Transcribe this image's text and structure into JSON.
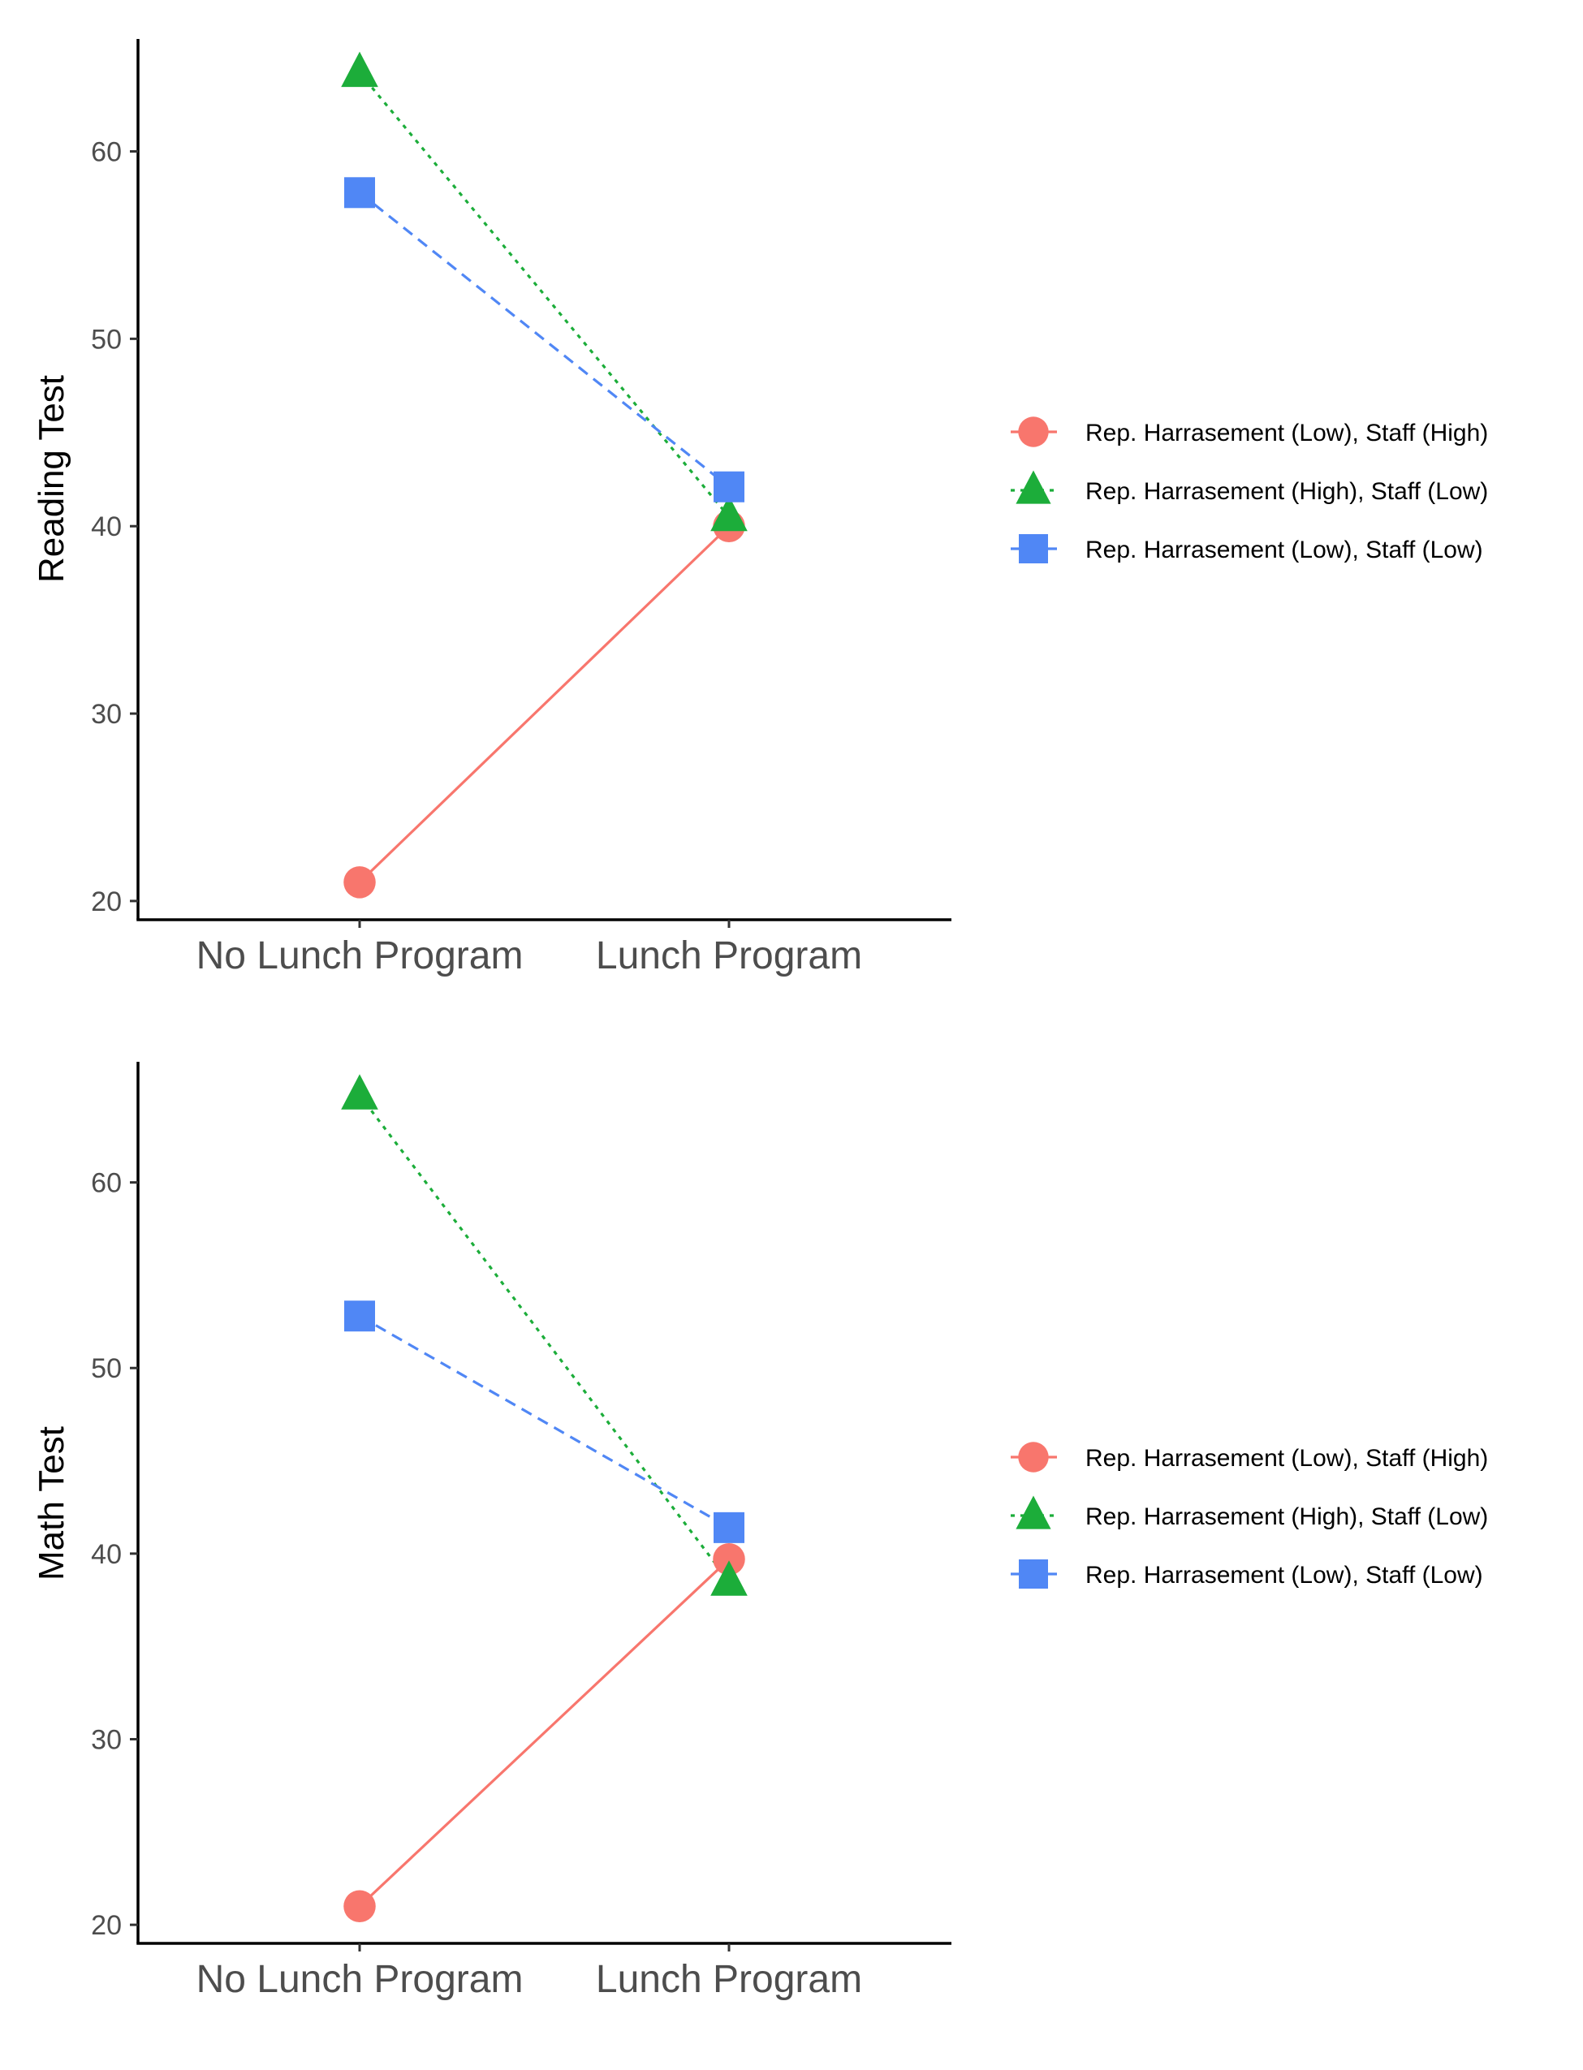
{
  "colors": {
    "red": "#F8766D",
    "green": "#1CAD3A",
    "blue": "#5087F5",
    "axis": "#000000",
    "tick_text": "#4d4d4d"
  },
  "chart_data": [
    {
      "type": "line",
      "title": "",
      "xlabel": "",
      "ylabel": "Reading Test",
      "categories": [
        "No Lunch Program",
        "Lunch Program"
      ],
      "yticks": [
        20,
        30,
        40,
        50,
        60
      ],
      "ylim": [
        19,
        66
      ],
      "grid": false,
      "legend_position": "right",
      "series": [
        {
          "name": "Rep. Harrasement (Low), Staff (High)",
          "values": [
            21.0,
            40.0
          ],
          "color": "#F8766D",
          "marker": "circle",
          "linestyle": "solid"
        },
        {
          "name": "Rep. Harrasement (High), Staff (Low)",
          "values": [
            64.2,
            40.5
          ],
          "color": "#1CAD3A",
          "marker": "triangle",
          "linestyle": "dotted"
        },
        {
          "name": "Rep. Harrasement (Low), Staff (Low)",
          "values": [
            57.8,
            42.1
          ],
          "color": "#5087F5",
          "marker": "square",
          "linestyle": "dashed"
        }
      ]
    },
    {
      "type": "line",
      "title": "",
      "xlabel": "",
      "ylabel": "Math Test",
      "categories": [
        "No Lunch Program",
        "Lunch Program"
      ],
      "yticks": [
        20,
        30,
        40,
        50,
        60
      ],
      "ylim": [
        19,
        66.5
      ],
      "grid": false,
      "legend_position": "right",
      "series": [
        {
          "name": "Rep. Harrasement (Low), Staff (High)",
          "values": [
            21.0,
            39.7
          ],
          "color": "#F8766D",
          "marker": "circle",
          "linestyle": "solid"
        },
        {
          "name": "Rep. Harrasement (High), Staff (Low)",
          "values": [
            64.7,
            38.5
          ],
          "color": "#1CAD3A",
          "marker": "triangle",
          "linestyle": "dotted"
        },
        {
          "name": "Rep. Harrasement (Low), Staff (Low)",
          "values": [
            52.8,
            41.4
          ],
          "color": "#5087F5",
          "marker": "square",
          "linestyle": "dashed"
        }
      ]
    }
  ]
}
